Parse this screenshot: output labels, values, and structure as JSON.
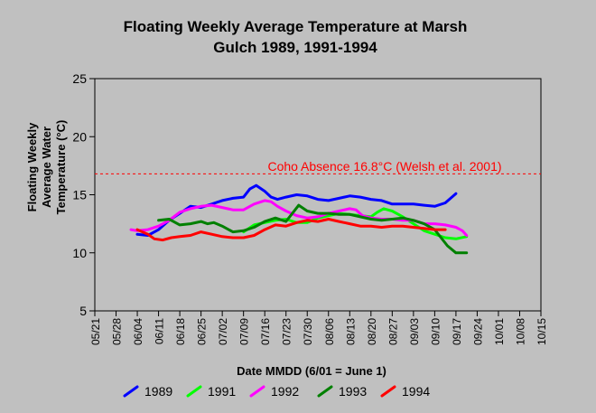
{
  "chart_data": {
    "type": "line",
    "title_line1": "Floating Weekly Average Temperature at Marsh",
    "title_line2": "Gulch 1989, 1991-1994",
    "xlabel": "Date MMDD (6/01 = June 1)",
    "ylabel_lines": [
      "Floating Weekly",
      "Average Water",
      "Temperature (°C)"
    ],
    "x_ticks": [
      "05/21",
      "05/28",
      "06/04",
      "06/11",
      "06/18",
      "06/25",
      "07/02",
      "07/09",
      "07/16",
      "07/23",
      "07/30",
      "08/06",
      "08/13",
      "08/20",
      "08/27",
      "09/03",
      "09/10",
      "09/17",
      "09/24",
      "10/01",
      "10/08",
      "10/15"
    ],
    "y_ticks": [
      5,
      10,
      15,
      20,
      25
    ],
    "ylim": [
      5,
      25
    ],
    "grid": false,
    "legend_position": "bottom",
    "reference_line": {
      "value": 16.8,
      "label": "Coho Absence 16.8°C (Welsh et al. 2001)",
      "color": "#ff0000"
    },
    "series": [
      {
        "name": "1989",
        "color": "#0000ff",
        "points": [
          [
            2,
            11.6
          ],
          [
            2.5,
            11.5
          ],
          [
            3,
            12.0
          ],
          [
            3.5,
            12.8
          ],
          [
            4,
            13.4
          ],
          [
            4.5,
            14.0
          ],
          [
            5,
            13.9
          ],
          [
            5.5,
            14.2
          ],
          [
            6,
            14.5
          ],
          [
            6.5,
            14.7
          ],
          [
            7,
            14.8
          ],
          [
            7.3,
            15.5
          ],
          [
            7.6,
            15.8
          ],
          [
            8,
            15.3
          ],
          [
            8.3,
            14.8
          ],
          [
            8.6,
            14.6
          ],
          [
            9,
            14.8
          ],
          [
            9.5,
            15.0
          ],
          [
            10,
            14.9
          ],
          [
            10.5,
            14.6
          ],
          [
            11,
            14.5
          ],
          [
            11.5,
            14.7
          ],
          [
            12,
            14.9
          ],
          [
            12.5,
            14.8
          ],
          [
            13,
            14.6
          ],
          [
            13.5,
            14.5
          ],
          [
            14,
            14.2
          ],
          [
            14.5,
            14.2
          ],
          [
            15,
            14.2
          ],
          [
            15.5,
            14.1
          ],
          [
            16,
            14.0
          ],
          [
            16.5,
            14.3
          ],
          [
            17,
            15.1
          ]
        ]
      },
      {
        "name": "1991",
        "color": "#00ff00",
        "points": [
          [
            7,
            11.8
          ],
          [
            7.5,
            12.4
          ],
          [
            8,
            12.6
          ],
          [
            8.5,
            12.8
          ],
          [
            9,
            12.9
          ],
          [
            9.5,
            12.6
          ],
          [
            10,
            12.6
          ],
          [
            10.5,
            13.0
          ],
          [
            11,
            13.2
          ],
          [
            11.5,
            13.4
          ],
          [
            12,
            13.3
          ],
          [
            12.5,
            13.2
          ],
          [
            13,
            13.1
          ],
          [
            13.3,
            13.5
          ],
          [
            13.6,
            13.8
          ],
          [
            14,
            13.6
          ],
          [
            14.5,
            13.1
          ],
          [
            15,
            12.5
          ],
          [
            15.5,
            11.9
          ],
          [
            16,
            11.6
          ],
          [
            16.5,
            11.3
          ],
          [
            17,
            11.2
          ],
          [
            17.5,
            11.4
          ]
        ]
      },
      {
        "name": "1992",
        "color": "#ff00ff",
        "points": [
          [
            1.7,
            12.0
          ],
          [
            2,
            11.9
          ],
          [
            2.5,
            12.0
          ],
          [
            3,
            12.3
          ],
          [
            3.5,
            12.8
          ],
          [
            4,
            13.5
          ],
          [
            4.5,
            13.8
          ],
          [
            5,
            14.0
          ],
          [
            5.5,
            14.1
          ],
          [
            6,
            13.9
          ],
          [
            6.5,
            13.7
          ],
          [
            7,
            13.7
          ],
          [
            7.5,
            14.2
          ],
          [
            8,
            14.5
          ],
          [
            8.3,
            14.4
          ],
          [
            8.6,
            14.0
          ],
          [
            9,
            13.6
          ],
          [
            9.5,
            13.2
          ],
          [
            10,
            13.0
          ],
          [
            10.5,
            13.1
          ],
          [
            11,
            13.4
          ],
          [
            11.5,
            13.6
          ],
          [
            12,
            13.8
          ],
          [
            12.3,
            13.7
          ],
          [
            12.6,
            13.2
          ],
          [
            13,
            13.0
          ],
          [
            13.5,
            12.9
          ],
          [
            14,
            12.9
          ],
          [
            14.5,
            12.8
          ],
          [
            15,
            12.8
          ],
          [
            15.5,
            12.5
          ],
          [
            16,
            12.5
          ],
          [
            16.5,
            12.4
          ],
          [
            17,
            12.2
          ],
          [
            17.3,
            11.9
          ],
          [
            17.5,
            11.5
          ]
        ]
      },
      {
        "name": "1993",
        "color": "#008000",
        "points": [
          [
            3,
            12.8
          ],
          [
            3.5,
            12.9
          ],
          [
            4,
            12.4
          ],
          [
            4.5,
            12.5
          ],
          [
            5,
            12.7
          ],
          [
            5.3,
            12.5
          ],
          [
            5.6,
            12.6
          ],
          [
            6,
            12.3
          ],
          [
            6.5,
            11.8
          ],
          [
            7,
            11.9
          ],
          [
            7.5,
            12.2
          ],
          [
            8,
            12.7
          ],
          [
            8.5,
            13.0
          ],
          [
            9,
            12.7
          ],
          [
            9.3,
            13.4
          ],
          [
            9.6,
            14.1
          ],
          [
            10,
            13.6
          ],
          [
            10.5,
            13.4
          ],
          [
            11,
            13.4
          ],
          [
            11.5,
            13.3
          ],
          [
            12,
            13.3
          ],
          [
            12.5,
            13.1
          ],
          [
            13,
            12.9
          ],
          [
            13.5,
            12.8
          ],
          [
            14,
            12.9
          ],
          [
            14.5,
            13.0
          ],
          [
            15,
            12.8
          ],
          [
            15.5,
            12.5
          ],
          [
            16,
            12.0
          ],
          [
            16.3,
            11.3
          ],
          [
            16.6,
            10.6
          ],
          [
            17,
            10.0
          ],
          [
            17.5,
            10.0
          ]
        ]
      },
      {
        "name": "1994",
        "color": "#ff0000",
        "points": [
          [
            2,
            12.0
          ],
          [
            2.5,
            11.6
          ],
          [
            2.8,
            11.2
          ],
          [
            3.2,
            11.1
          ],
          [
            3.6,
            11.3
          ],
          [
            4,
            11.4
          ],
          [
            4.5,
            11.5
          ],
          [
            5,
            11.8
          ],
          [
            5.5,
            11.6
          ],
          [
            6,
            11.4
          ],
          [
            6.5,
            11.3
          ],
          [
            7,
            11.3
          ],
          [
            7.5,
            11.5
          ],
          [
            8,
            12.0
          ],
          [
            8.5,
            12.4
          ],
          [
            9,
            12.3
          ],
          [
            9.5,
            12.6
          ],
          [
            10,
            12.8
          ],
          [
            10.5,
            12.7
          ],
          [
            11,
            12.9
          ],
          [
            11.5,
            12.7
          ],
          [
            12,
            12.5
          ],
          [
            12.5,
            12.3
          ],
          [
            13,
            12.3
          ],
          [
            13.5,
            12.2
          ],
          [
            14,
            12.3
          ],
          [
            14.5,
            12.3
          ],
          [
            15,
            12.2
          ],
          [
            15.5,
            12.1
          ],
          [
            16,
            12.0
          ],
          [
            16.5,
            12.0
          ]
        ]
      }
    ]
  }
}
